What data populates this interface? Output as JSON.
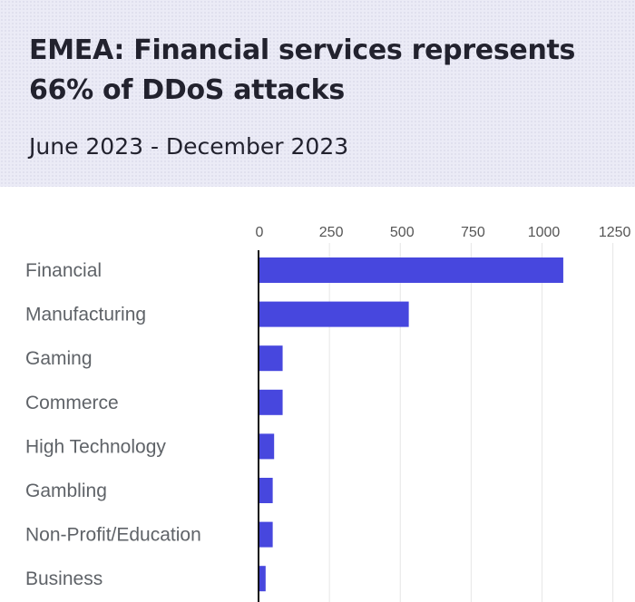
{
  "header": {
    "title": "EMEA: Financial services represents 66% of DDoS attacks",
    "subtitle": "June 2023 - December 2023"
  },
  "colors": {
    "bar": "#4747de",
    "header_background": "#ebebf6",
    "gridline": "#e6e6e6",
    "axis": "#111111",
    "category_label": "#5f6368",
    "tick_label": "#555555"
  },
  "chart_data": {
    "type": "bar",
    "orientation": "horizontal",
    "categories": [
      "Financial",
      "Manufacturing",
      "Gaming",
      "Commerce",
      "High Technology",
      "Gambling",
      "Non-Profit/Education",
      "Business"
    ],
    "values": [
      1075,
      530,
      85,
      85,
      55,
      50,
      50,
      25
    ],
    "xticks": [
      0,
      250,
      500,
      750,
      1000,
      1250
    ],
    "xlim": [
      0,
      1250
    ],
    "title": "EMEA: Financial services represents 66% of DDoS attacks",
    "subtitle": "June 2023 - December 2023",
    "xlabel": "",
    "ylabel": "",
    "grid": true,
    "legend": "none"
  }
}
